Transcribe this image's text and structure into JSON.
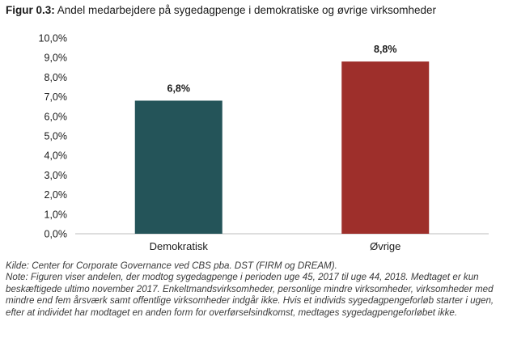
{
  "figure": {
    "label": "Figur 0.3:",
    "title": "Andel medarbejdere på sygedagpenge i demokratiske og øvrige virksomheder"
  },
  "chart_data": {
    "type": "bar",
    "title": "Andel medarbejdere på sygedagpenge i demokratiske og øvrige virksomheder",
    "categories": [
      "Demokratisk",
      "Øvrige"
    ],
    "values": [
      6.8,
      8.8
    ],
    "data_labels": [
      "6,8%",
      "8,8%"
    ],
    "ylim": [
      0,
      10
    ],
    "y_ticks": [
      "0,0%",
      "1,0%",
      "2,0%",
      "3,0%",
      "4,0%",
      "5,0%",
      "6,0%",
      "7,0%",
      "8,0%",
      "9,0%",
      "10,0%"
    ],
    "xlabel": "",
    "ylabel": "",
    "grid": false,
    "colors": [
      "#245459",
      "#9e2f2b"
    ]
  },
  "notes": {
    "source": "Kilde: Center for Corporate Governance ved CBS pba. DST (FIRM og DREAM).",
    "note": "Note: Figuren viser andelen, der modtog sygedagpenge i perioden uge 45, 2017 til uge 44, 2018. Medtaget er kun beskæftigede ultimo november 2017. Enkeltmandsvirksomheder, personlige mindre virksomheder, virksomheder med mindre end fem årsværk samt offentlige virksomheder indgår ikke. Hvis et individs sygedagpengeforløb starter i ugen, efter at individet har modtaget en anden form for overførselsindkomst, medtages sygedagpengeforløbet ikke."
  }
}
